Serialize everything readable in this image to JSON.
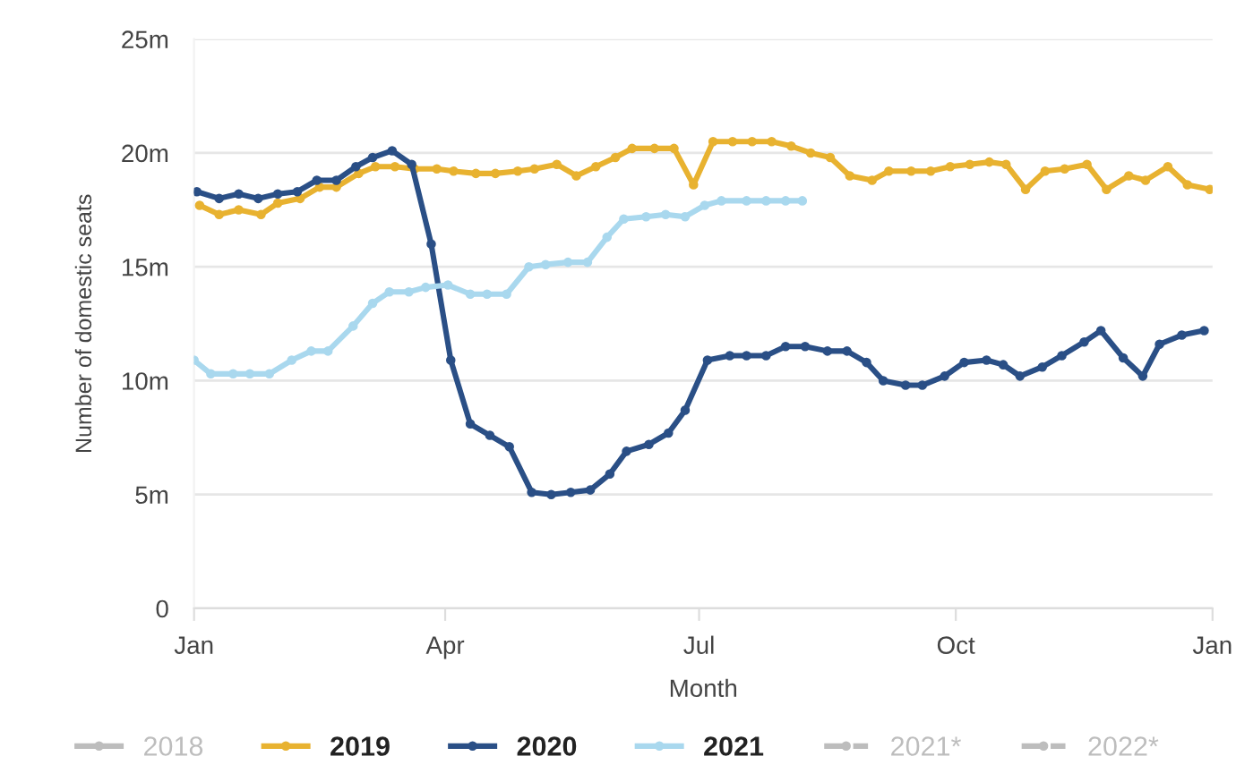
{
  "chart_data": {
    "type": "line",
    "xlabel": "Month",
    "ylabel": "Number of domestic seats",
    "xlim": [
      "2019-01-01",
      "2020-01-01"
    ],
    "xticks": [
      {
        "value": "2019-01-01",
        "label": "Jan"
      },
      {
        "value": "2019-04-01",
        "label": "Apr"
      },
      {
        "value": "2019-07-01",
        "label": "Jul"
      },
      {
        "value": "2019-10-01",
        "label": "Oct"
      },
      {
        "value": "2020-01-01",
        "label": "Jan"
      }
    ],
    "ylim": [
      0,
      25
    ],
    "yticks": [
      {
        "value": 0,
        "label": "0"
      },
      {
        "value": 5,
        "label": "5m"
      },
      {
        "value": 10,
        "label": "10m"
      },
      {
        "value": 15,
        "label": "15m"
      },
      {
        "value": 20,
        "label": "20m"
      },
      {
        "value": 25,
        "label": "25m"
      }
    ],
    "grid": "y",
    "legend": "bottom",
    "marker": "circle",
    "line_style": "solid",
    "series": [
      {
        "name": "2018",
        "color": "#bdbdbd"
      },
      {
        "name": "2019",
        "color": "#e8b230",
        "x": [
          "2019-01-03",
          "2019-01-10",
          "2019-01-17",
          "2019-01-25",
          "2019-01-31",
          "2019-02-08",
          "2019-02-15",
          "2019-02-21",
          "2019-03-01",
          "2019-03-07",
          "2019-03-14",
          "2019-03-21",
          "2019-03-29",
          "2019-04-04",
          "2019-04-12",
          "2019-04-19",
          "2019-04-27",
          "2019-05-03",
          "2019-05-11",
          "2019-05-18",
          "2019-05-25",
          "2019-06-01",
          "2019-06-07",
          "2019-06-15",
          "2019-06-22",
          "2019-06-29",
          "2019-07-06",
          "2019-07-13",
          "2019-07-20",
          "2019-07-27",
          "2019-08-03",
          "2019-08-10",
          "2019-08-17",
          "2019-08-24",
          "2019-09-01",
          "2019-09-07",
          "2019-09-15",
          "2019-09-22",
          "2019-09-29",
          "2019-10-06",
          "2019-10-13",
          "2019-10-19",
          "2019-10-26",
          "2019-11-02",
          "2019-11-09",
          "2019-11-17",
          "2019-11-24",
          "2019-12-02",
          "2019-12-08",
          "2019-12-16",
          "2019-12-23",
          "2019-12-31"
        ],
        "values": [
          17.7,
          17.3,
          17.5,
          17.3,
          17.8,
          18.0,
          18.5,
          18.5,
          19.1,
          19.4,
          19.4,
          19.3,
          19.3,
          19.2,
          19.1,
          19.1,
          19.2,
          19.3,
          19.5,
          19.0,
          19.4,
          19.8,
          20.2,
          20.2,
          20.2,
          18.6,
          20.5,
          20.5,
          20.5,
          20.5,
          20.3,
          20.0,
          19.8,
          19.0,
          18.8,
          19.2,
          19.2,
          19.2,
          19.4,
          19.5,
          19.6,
          19.5,
          18.4,
          19.2,
          19.3,
          19.5,
          18.4,
          19.0,
          18.8,
          19.4,
          18.6,
          18.4
        ]
      },
      {
        "name": "2020",
        "color": "#2a4f86",
        "x": [
          "2019-01-02",
          "2019-01-10",
          "2019-01-17",
          "2019-01-24",
          "2019-01-31",
          "2019-02-07",
          "2019-02-14",
          "2019-02-21",
          "2019-02-28",
          "2019-03-06",
          "2019-03-13",
          "2019-03-20",
          "2019-03-27",
          "2019-04-03",
          "2019-04-10",
          "2019-04-17",
          "2019-04-24",
          "2019-05-02",
          "2019-05-09",
          "2019-05-16",
          "2019-05-23",
          "2019-05-30",
          "2019-06-05",
          "2019-06-13",
          "2019-06-20",
          "2019-06-26",
          "2019-07-04",
          "2019-07-12",
          "2019-07-18",
          "2019-07-25",
          "2019-08-01",
          "2019-08-08",
          "2019-08-16",
          "2019-08-23",
          "2019-08-30",
          "2019-09-05",
          "2019-09-13",
          "2019-09-19",
          "2019-09-27",
          "2019-10-04",
          "2019-10-12",
          "2019-10-18",
          "2019-10-24",
          "2019-11-01",
          "2019-11-08",
          "2019-11-16",
          "2019-11-22",
          "2019-11-30",
          "2019-12-07",
          "2019-12-13",
          "2019-12-21",
          "2019-12-29"
        ],
        "values": [
          18.3,
          18.0,
          18.2,
          18.0,
          18.2,
          18.3,
          18.8,
          18.8,
          19.4,
          19.8,
          20.1,
          19.5,
          16.0,
          10.9,
          8.1,
          7.6,
          7.1,
          5.1,
          5.0,
          5.1,
          5.2,
          5.9,
          6.9,
          7.2,
          7.7,
          8.7,
          10.9,
          11.1,
          11.1,
          11.1,
          11.5,
          11.5,
          11.3,
          11.3,
          10.8,
          10.0,
          9.8,
          9.8,
          10.2,
          10.8,
          10.9,
          10.7,
          10.2,
          10.6,
          11.1,
          11.7,
          12.2,
          11.0,
          10.2,
          11.6,
          12.0,
          12.2
        ]
      },
      {
        "name": "2021",
        "color": "#a9d8ee",
        "x": [
          "2019-01-01",
          "2019-01-07",
          "2019-01-15",
          "2019-01-21",
          "2019-01-28",
          "2019-02-05",
          "2019-02-12",
          "2019-02-18",
          "2019-02-27",
          "2019-03-06",
          "2019-03-12",
          "2019-03-19",
          "2019-03-25",
          "2019-04-02",
          "2019-04-10",
          "2019-04-16",
          "2019-04-23",
          "2019-05-01",
          "2019-05-07",
          "2019-05-15",
          "2019-05-22",
          "2019-05-29",
          "2019-06-04",
          "2019-06-12",
          "2019-06-19",
          "2019-06-26",
          "2019-07-03",
          "2019-07-09",
          "2019-07-18",
          "2019-07-25",
          "2019-08-01",
          "2019-08-07"
        ],
        "values": [
          10.9,
          10.3,
          10.3,
          10.3,
          10.3,
          10.9,
          11.3,
          11.3,
          12.4,
          13.4,
          13.9,
          13.9,
          14.1,
          14.2,
          13.8,
          13.8,
          13.8,
          15.0,
          15.1,
          15.2,
          15.2,
          16.3,
          17.1,
          17.2,
          17.3,
          17.2,
          17.7,
          17.9,
          17.9,
          17.9,
          17.9,
          17.9
        ]
      },
      {
        "name": "2021*",
        "color": "#bdbdbd",
        "line_style": "dashed"
      },
      {
        "name": "2022*",
        "color": "#bdbdbd",
        "line_style": "dashed"
      }
    ]
  }
}
